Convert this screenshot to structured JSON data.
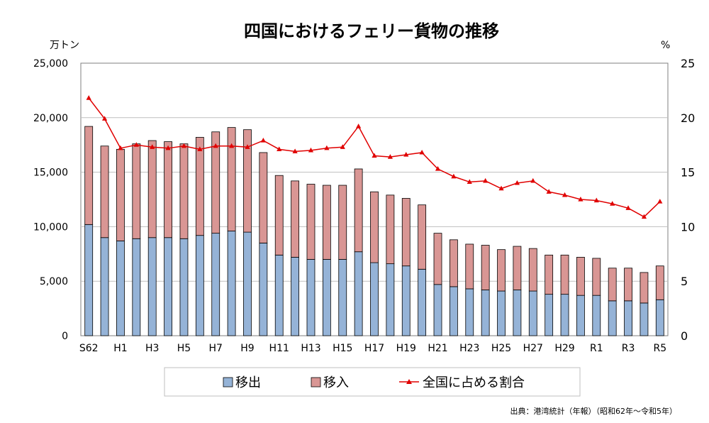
{
  "colors": {
    "export_fill": "#95B3D7",
    "import_fill": "#D99694",
    "bar_stroke": "#000000",
    "ratio_line": "#E00000",
    "grid": "#BFBFBF"
  },
  "chart_data": {
    "type": "bar",
    "stacked": true,
    "title": "四国におけるフェリー貨物の推移",
    "left_unit": "万トン",
    "right_unit": "%",
    "source": "出典：港湾統計（年報）（昭和62年～令和5年）",
    "categories": [
      "S62",
      "S63",
      "H1",
      "H2",
      "H3",
      "H4",
      "H5",
      "H6",
      "H7",
      "H8",
      "H9",
      "H10",
      "H11",
      "H12",
      "H13",
      "H14",
      "H15",
      "H16",
      "H17",
      "H18",
      "H19",
      "H20",
      "H21",
      "H22",
      "H23",
      "H24",
      "H25",
      "H26",
      "H27",
      "H28",
      "H29",
      "H30",
      "R1",
      "R2",
      "R3",
      "R4",
      "R5"
    ],
    "x_tick_labels": [
      "S62",
      "",
      "H1",
      "",
      "H3",
      "",
      "H5",
      "",
      "H7",
      "",
      "H9",
      "",
      "H11",
      "",
      "H13",
      "",
      "H15",
      "",
      "H17",
      "",
      "H19",
      "",
      "H21",
      "",
      "H23",
      "",
      "H25",
      "",
      "H27",
      "",
      "H29",
      "",
      "R1",
      "",
      "R3",
      "",
      "R5"
    ],
    "ylim": [
      0,
      25000
    ],
    "y_ticks": [
      "0",
      "5,000",
      "10,000",
      "15,000",
      "20,000",
      "25,000"
    ],
    "y2lim": [
      0,
      25
    ],
    "y2_ticks": [
      "0",
      "5",
      "10",
      "15",
      "20",
      "25"
    ],
    "grid": true,
    "legend_position": "bottom",
    "series": [
      {
        "name": "移出",
        "kind": "bar",
        "values": [
          10200,
          9000,
          8700,
          8900,
          9000,
          9000,
          8900,
          9200,
          9400,
          9600,
          9500,
          8500,
          7400,
          7200,
          7000,
          7000,
          7000,
          7700,
          6700,
          6600,
          6400,
          6100,
          4700,
          4500,
          4300,
          4200,
          4100,
          4200,
          4100,
          3800,
          3800,
          3700,
          3700,
          3200,
          3200,
          3000,
          3300
        ]
      },
      {
        "name": "移入",
        "kind": "bar",
        "values": [
          9000,
          8400,
          8400,
          8700,
          8900,
          8800,
          8700,
          9000,
          9300,
          9500,
          9400,
          8300,
          7300,
          7000,
          6900,
          6800,
          6800,
          7600,
          6500,
          6300,
          6200,
          5900,
          4700,
          4300,
          4100,
          4100,
          3800,
          4000,
          3900,
          3600,
          3600,
          3500,
          3400,
          3000,
          3000,
          2800,
          3100
        ]
      },
      {
        "name": "全国に占める割合",
        "kind": "line",
        "axis": "right",
        "values": [
          21.8,
          19.9,
          17.2,
          17.5,
          17.3,
          17.2,
          17.4,
          17.1,
          17.4,
          17.4,
          17.3,
          17.9,
          17.1,
          16.9,
          17.0,
          17.2,
          17.3,
          19.2,
          16.5,
          16.4,
          16.6,
          16.8,
          15.3,
          14.6,
          14.1,
          14.2,
          13.5,
          14.0,
          14.2,
          13.2,
          12.9,
          12.5,
          12.4,
          12.1,
          11.7,
          10.9,
          12.3
        ]
      }
    ]
  }
}
